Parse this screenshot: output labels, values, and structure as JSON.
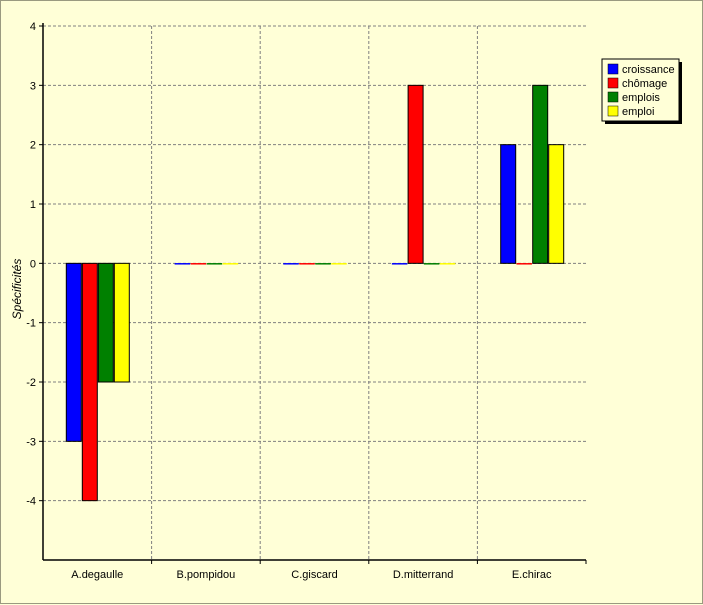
{
  "chart_data": {
    "type": "bar",
    "title": "",
    "xlabel": "",
    "ylabel": "Spécificités",
    "ylim": [
      -5,
      4
    ],
    "y_ticks": [
      4,
      3,
      2,
      1,
      0,
      -1,
      -2,
      -3,
      -4
    ],
    "grid": true,
    "legend_position": "top-right",
    "categories": [
      "A.degaulle",
      "B.pompidou",
      "C.giscard",
      "D.mitterrand",
      "E.chirac"
    ],
    "series": [
      {
        "name": "croissance",
        "color": "#0000ff",
        "values": [
          -3,
          0,
          0,
          0,
          2
        ]
      },
      {
        "name": "chômage",
        "color": "#ff0000",
        "values": [
          -4,
          0,
          0,
          3,
          0
        ]
      },
      {
        "name": "emplois",
        "color": "#008000",
        "values": [
          -2,
          0,
          0,
          0,
          3
        ]
      },
      {
        "name": "emploi",
        "color": "#ffff00",
        "values": [
          -2,
          0,
          0,
          0,
          2
        ]
      }
    ],
    "plot_background": "#ffffd7",
    "grid_color": "#808080"
  }
}
